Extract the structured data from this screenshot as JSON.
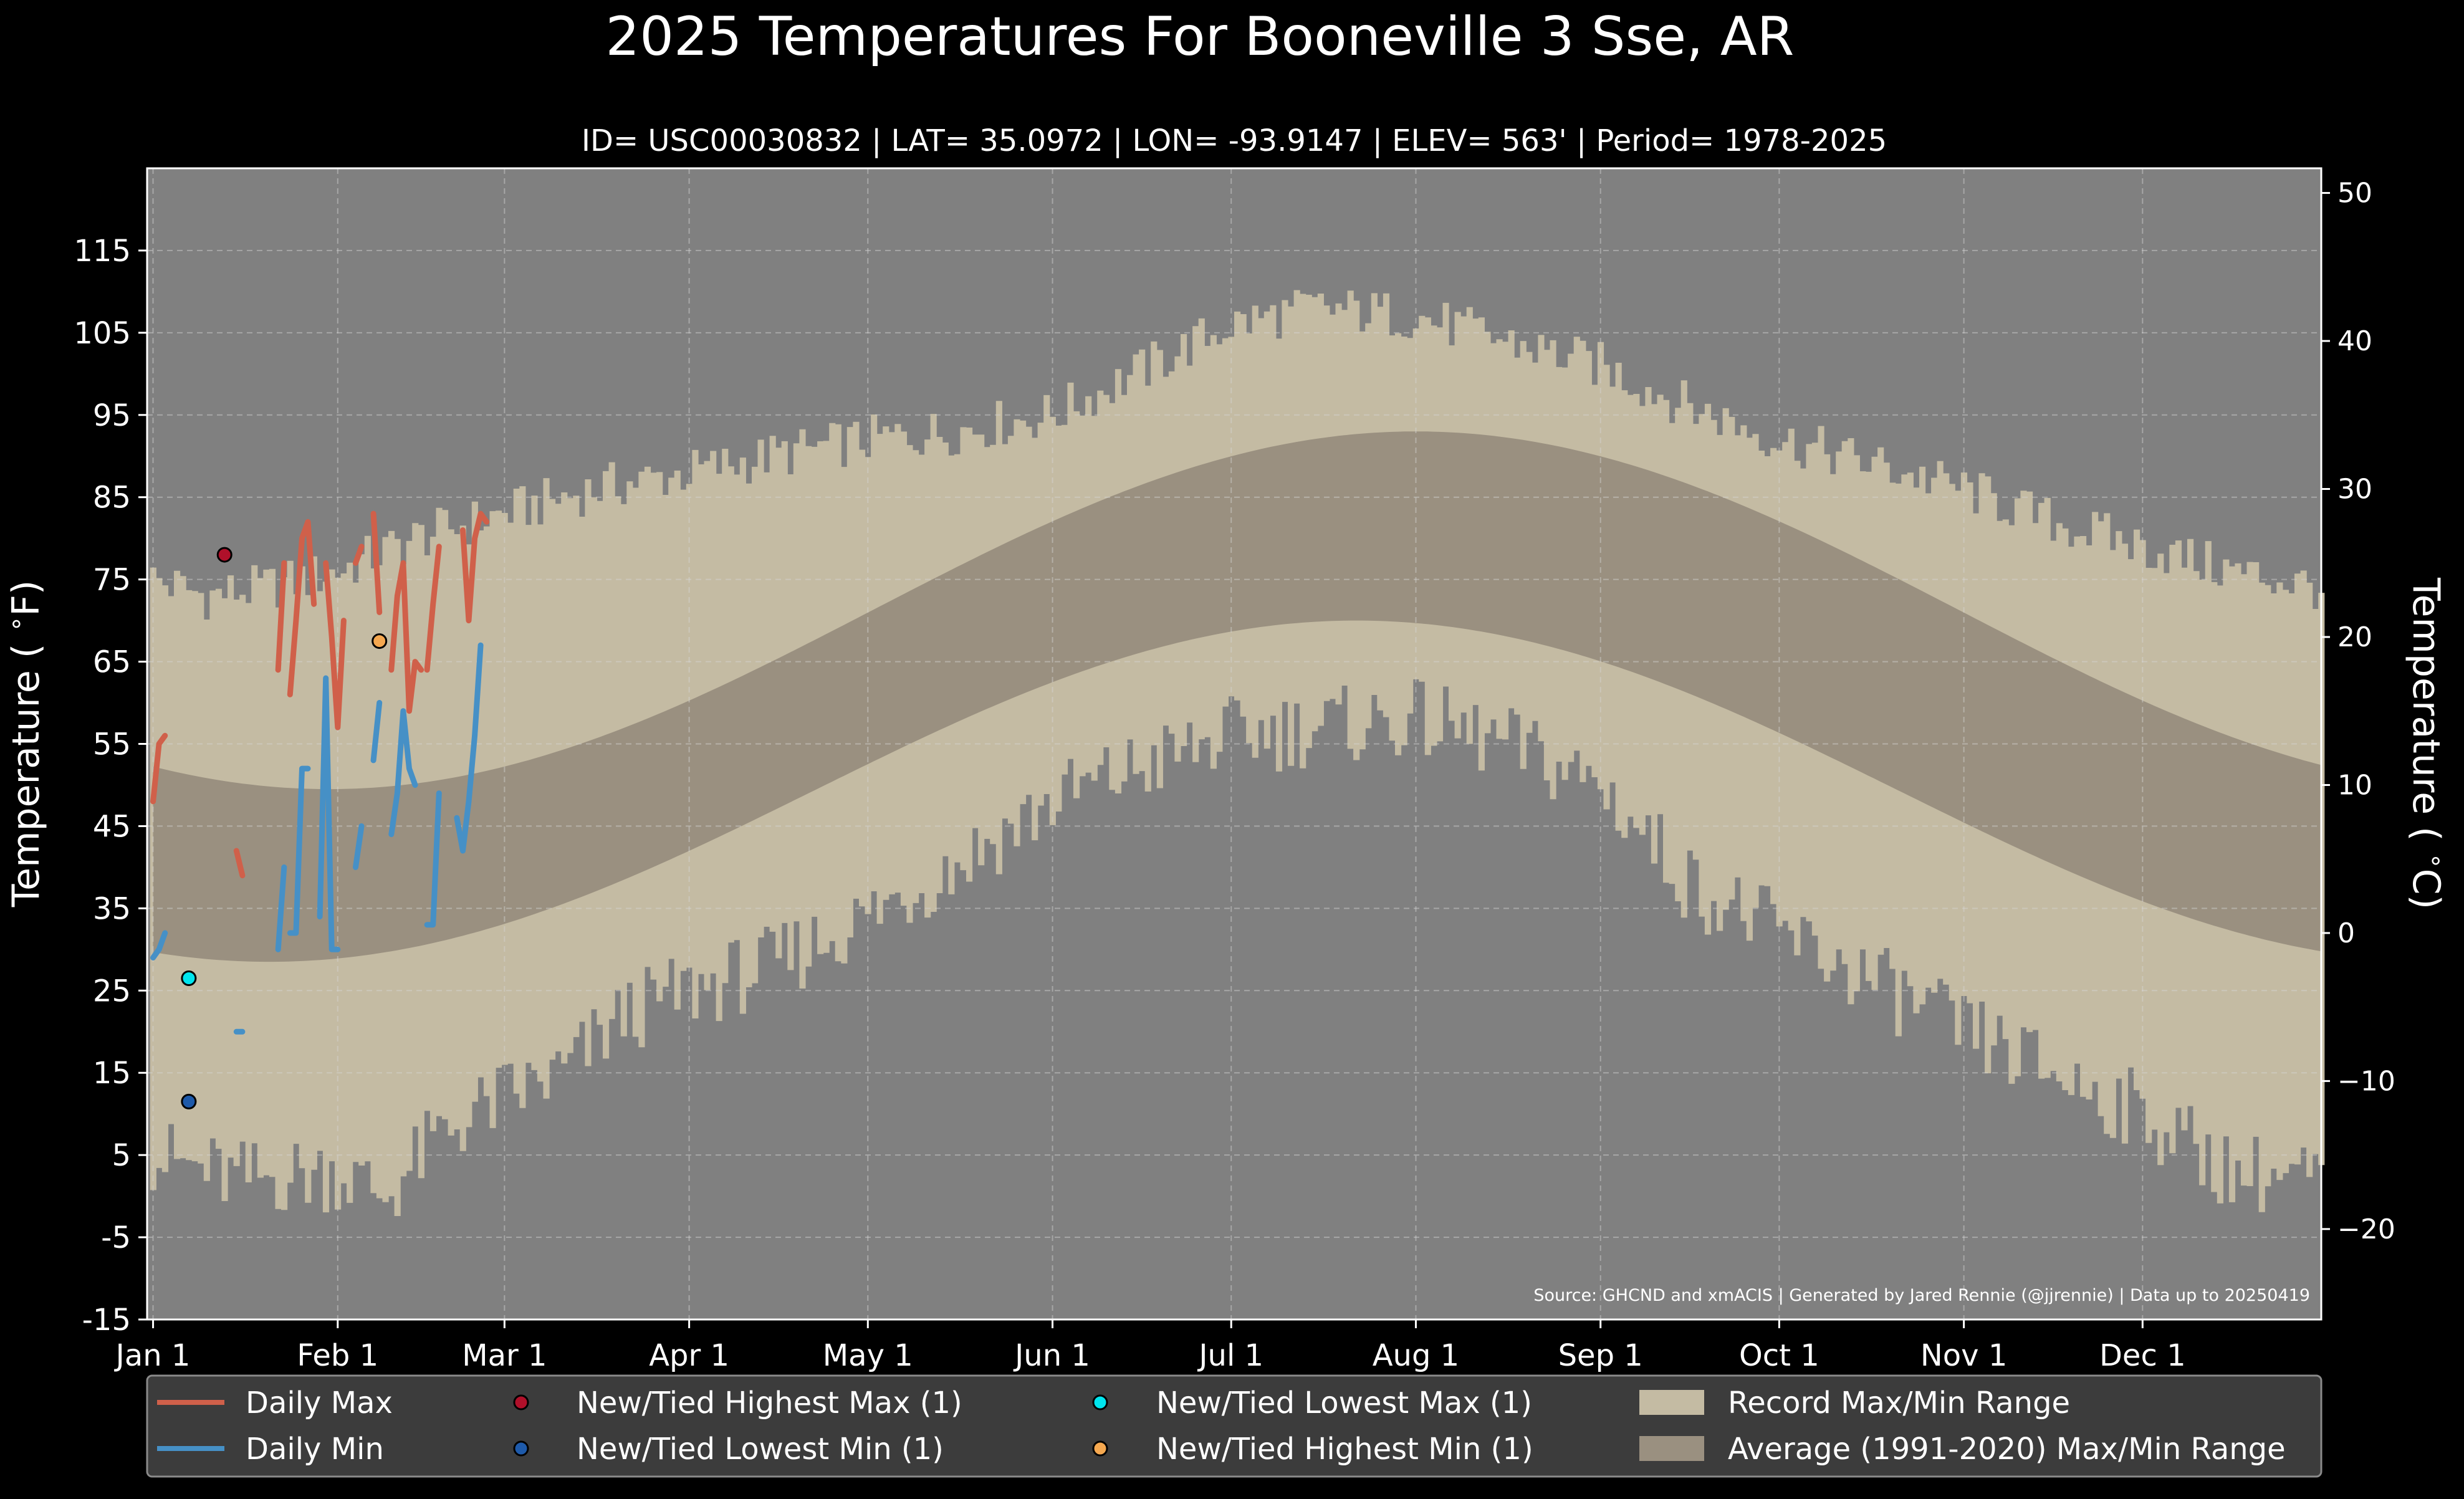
{
  "title": "2025 Temperatures For Booneville 3 Sse, AR",
  "subtitle": "ID= USC00030832 | LAT= 35.0972 | LON= -93.9147 | ELEV= 563' | Period= 1978-2025",
  "source": "Source: GHCND and xmACIS | Generated by Jared Rennie (@jjrennie) | Data up to 20250419",
  "colors": {
    "background": "#000000",
    "plot_background": "#808080",
    "record_range": "#C4BBA3",
    "average_range": "#9A9080",
    "daily_max": "#D0604A",
    "daily_min": "#4690C6",
    "highest_max_marker": "#B0102A",
    "lowest_min_marker": "#1E5AAA",
    "lowest_max_marker": "#00E5EE",
    "highest_min_marker": "#F5A850",
    "legend_background": "#3C3C3C"
  },
  "chart_data": {
    "type": "line",
    "x_unit": "day of year (2025)",
    "xlim": [
      0,
      365
    ],
    "ylim": [
      -15,
      125
    ],
    "y2lim_celsius": [
      -26.1,
      51.7
    ],
    "ylabel": "Temperature ($^\\circ$F)",
    "y2label": "Temperature ($^\\circ$C)",
    "grid": true,
    "legend_placement": "below",
    "x_ticks": [
      {
        "day": 1,
        "label": "Jan 1"
      },
      {
        "day": 32,
        "label": "Feb 1"
      },
      {
        "day": 60,
        "label": "Mar 1"
      },
      {
        "day": 91,
        "label": "Apr 1"
      },
      {
        "day": 121,
        "label": "May 1"
      },
      {
        "day": 152,
        "label": "Jun 1"
      },
      {
        "day": 182,
        "label": "Jul 1"
      },
      {
        "day": 213,
        "label": "Aug 1"
      },
      {
        "day": 244,
        "label": "Sep 1"
      },
      {
        "day": 274,
        "label": "Oct 1"
      },
      {
        "day": 305,
        "label": "Nov 1"
      },
      {
        "day": 335,
        "label": "Dec 1"
      }
    ],
    "y_ticks": [
      {
        "value": -15,
        "label": "-15"
      },
      {
        "value": -5,
        "label": "-5"
      },
      {
        "value": 5,
        "label": "5"
      },
      {
        "value": 15,
        "label": "15"
      },
      {
        "value": 25,
        "label": "25"
      },
      {
        "value": 35,
        "label": "35"
      },
      {
        "value": 45,
        "label": "45"
      },
      {
        "value": 55,
        "label": "55"
      },
      {
        "value": 65,
        "label": "65"
      },
      {
        "value": 75,
        "label": "75"
      },
      {
        "value": 85,
        "label": "85"
      },
      {
        "value": 95,
        "label": "95"
      },
      {
        "value": 105,
        "label": "105"
      },
      {
        "value": 115,
        "label": "115"
      }
    ],
    "y2_ticks": [
      {
        "value": -20,
        "label": "−20"
      },
      {
        "value": -10,
        "label": "−10"
      },
      {
        "value": 0,
        "label": "0"
      },
      {
        "value": 10,
        "label": "10"
      },
      {
        "value": 20,
        "label": "20"
      },
      {
        "value": 30,
        "label": "30"
      },
      {
        "value": 40,
        "label": "40"
      },
      {
        "value": 50,
        "label": "50"
      }
    ],
    "record_max_anchors": [
      [
        1,
        75
      ],
      [
        10,
        73
      ],
      [
        20,
        74
      ],
      [
        32,
        76
      ],
      [
        45,
        80
      ],
      [
        60,
        83
      ],
      [
        75,
        86
      ],
      [
        91,
        88
      ],
      [
        105,
        90
      ],
      [
        121,
        92
      ],
      [
        135,
        93
      ],
      [
        152,
        95
      ],
      [
        166,
        100
      ],
      [
        182,
        106
      ],
      [
        196,
        108
      ],
      [
        213,
        107
      ],
      [
        228,
        104
      ],
      [
        244,
        101
      ],
      [
        259,
        96
      ],
      [
        274,
        92
      ],
      [
        290,
        89
      ],
      [
        305,
        86
      ],
      [
        320,
        82
      ],
      [
        335,
        79
      ],
      [
        350,
        76
      ],
      [
        365,
        74
      ]
    ],
    "record_min_anchors": [
      [
        1,
        5
      ],
      [
        15,
        2
      ],
      [
        32,
        3
      ],
      [
        40,
        0
      ],
      [
        50,
        8
      ],
      [
        60,
        12
      ],
      [
        70,
        15
      ],
      [
        80,
        22
      ],
      [
        91,
        25
      ],
      [
        105,
        28
      ],
      [
        121,
        34
      ],
      [
        135,
        40
      ],
      [
        152,
        48
      ],
      [
        166,
        52
      ],
      [
        182,
        56
      ],
      [
        196,
        57
      ],
      [
        213,
        58
      ],
      [
        228,
        55
      ],
      [
        244,
        50
      ],
      [
        259,
        38
      ],
      [
        274,
        32
      ],
      [
        290,
        26
      ],
      [
        305,
        20
      ],
      [
        320,
        15
      ],
      [
        335,
        10
      ],
      [
        350,
        3
      ],
      [
        365,
        2
      ]
    ],
    "record_max_noise": 3,
    "record_min_noise": 5,
    "average_range": {
      "max_low": 49.5,
      "max_high": 93,
      "max_peak_day": 213,
      "min_low": 28.5,
      "min_high": 70,
      "min_peak_day": 203
    },
    "series": [
      {
        "name": "Daily Max",
        "segments": [
          [
            [
              1,
              48
            ],
            [
              2,
              55
            ],
            [
              3,
              56
            ]
          ],
          [
            [
              15,
              42
            ],
            [
              16,
              39
            ]
          ],
          [
            [
              22,
              64
            ],
            [
              23,
              77
            ]
          ],
          [
            [
              24,
              61
            ],
            [
              25,
              70
            ],
            [
              26,
              80
            ],
            [
              27,
              82
            ],
            [
              28,
              72
            ]
          ],
          [
            [
              30,
              77
            ],
            [
              31,
              68
            ],
            [
              32,
              57
            ],
            [
              33,
              70
            ]
          ],
          [
            [
              35,
              77
            ],
            [
              36,
              79
            ]
          ],
          [
            [
              38,
              83
            ],
            [
              39,
              71
            ]
          ],
          [
            [
              41,
              64
            ],
            [
              42,
              73
            ],
            [
              43,
              77
            ],
            [
              44,
              59
            ],
            [
              45,
              65
            ],
            [
              46,
              64
            ]
          ],
          [
            [
              47,
              64
            ],
            [
              48,
              72
            ],
            [
              49,
              79
            ]
          ],
          [
            [
              53,
              81
            ],
            [
              54,
              70
            ],
            [
              55,
              80
            ],
            [
              56,
              83
            ],
            [
              57,
              82
            ]
          ]
        ]
      },
      {
        "name": "Daily Min",
        "segments": [
          [
            [
              1,
              29
            ],
            [
              2,
              30
            ],
            [
              3,
              32
            ]
          ],
          [
            [
              15,
              20
            ],
            [
              16,
              20
            ]
          ],
          [
            [
              22,
              30
            ],
            [
              23,
              40
            ]
          ],
          [
            [
              24,
              32
            ],
            [
              25,
              32
            ],
            [
              26,
              52
            ],
            [
              27,
              52
            ]
          ],
          [
            [
              29,
              34
            ],
            [
              30,
              63
            ],
            [
              31,
              30
            ],
            [
              32,
              30
            ]
          ],
          [
            [
              35,
              40
            ],
            [
              36,
              45
            ]
          ],
          [
            [
              38,
              53
            ],
            [
              39,
              60
            ]
          ],
          [
            [
              41,
              44
            ],
            [
              42,
              49
            ],
            [
              43,
              59
            ],
            [
              44,
              52
            ],
            [
              45,
              50
            ]
          ],
          [
            [
              47,
              33
            ],
            [
              48,
              33
            ],
            [
              49,
              49
            ]
          ],
          [
            [
              52,
              46
            ],
            [
              53,
              42
            ],
            [
              54,
              48
            ],
            [
              55,
              56
            ],
            [
              56,
              67
            ]
          ]
        ]
      },
      {
        "name": "New/Tied Highest Max (1)",
        "points": [
          [
            13,
            78
          ]
        ]
      },
      {
        "name": "New/Tied Lowest Min (1)",
        "points": [
          [
            7,
            11.5
          ]
        ]
      },
      {
        "name": "New/Tied Lowest Max (1)",
        "points": [
          [
            7,
            26.5
          ]
        ]
      },
      {
        "name": "New/Tied Highest Min (1)",
        "points": [
          [
            39,
            67.5
          ]
        ]
      }
    ]
  },
  "legend": [
    {
      "label": "Daily Max",
      "kind": "line",
      "color_key": "daily_max"
    },
    {
      "label": "Daily Min",
      "kind": "line",
      "color_key": "daily_min"
    },
    {
      "label": "New/Tied Highest Max (1)",
      "kind": "marker",
      "color_key": "highest_max_marker"
    },
    {
      "label": "New/Tied Lowest Min (1)",
      "kind": "marker",
      "color_key": "lowest_min_marker"
    },
    {
      "label": "New/Tied Lowest Max (1)",
      "kind": "marker",
      "color_key": "lowest_max_marker"
    },
    {
      "label": "New/Tied Highest Min (1)",
      "kind": "marker",
      "color_key": "highest_min_marker"
    },
    {
      "label": "Record Max/Min Range",
      "kind": "patch",
      "color_key": "record_range"
    },
    {
      "label": "Average (1991-2020) Max/Min Range",
      "kind": "patch",
      "color_key": "average_range"
    }
  ]
}
